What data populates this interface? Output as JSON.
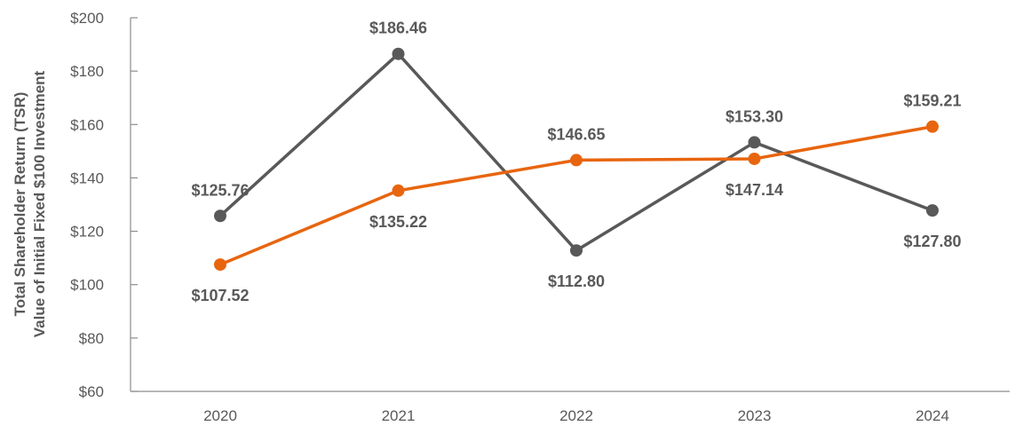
{
  "chart_data": {
    "type": "line",
    "title": "",
    "ylabel_lines": [
      "Total Shareholder Return (TSR)",
      "Value of Initial Fixed $100 Investment"
    ],
    "xlabel": "",
    "categories": [
      "2020",
      "2021",
      "2022",
      "2023",
      "2024"
    ],
    "ylim": [
      60,
      200
    ],
    "yticks": [
      60,
      80,
      100,
      120,
      140,
      160,
      180,
      200
    ],
    "ytick_labels": [
      "$60",
      "$80",
      "$100",
      "$120",
      "$140",
      "$160",
      "$180",
      "$200"
    ],
    "grid": false,
    "series": [
      {
        "name": "Gray series",
        "color": "#595959",
        "values": [
          125.76,
          186.46,
          112.8,
          153.3,
          127.8
        ],
        "labels": [
          "$125.76",
          "$186.46",
          "$112.80",
          "$153.30",
          "$127.80"
        ],
        "label_positions": [
          "above",
          "above",
          "below",
          "above",
          "below"
        ]
      },
      {
        "name": "Orange series",
        "color": "#E8650F",
        "values": [
          107.52,
          135.22,
          146.65,
          147.14,
          159.21
        ],
        "labels": [
          "$107.52",
          "$135.22",
          "$146.65",
          "$147.14",
          "$159.21"
        ],
        "label_positions": [
          "below",
          "below",
          "above",
          "below",
          "above"
        ]
      }
    ]
  }
}
